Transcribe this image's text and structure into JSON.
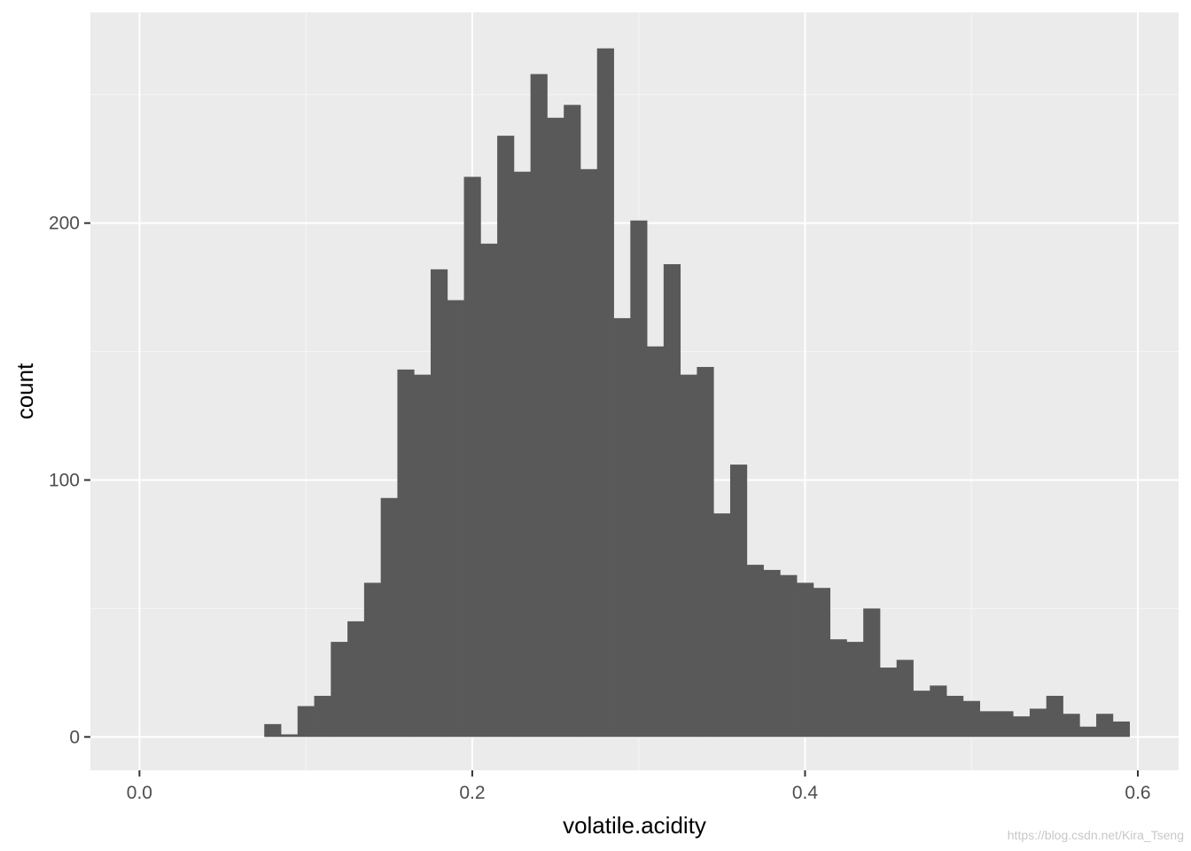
{
  "chart_data": {
    "type": "bar",
    "title": "",
    "xlabel": "volatile.acidity",
    "ylabel": "count",
    "xlim": [
      -0.0295,
      0.6245
    ],
    "ylim": [
      -13,
      282
    ],
    "x_ticks": [
      0.0,
      0.2,
      0.4,
      0.6
    ],
    "x_tick_labels": [
      "0.0",
      "0.2",
      "0.4",
      "0.6"
    ],
    "y_ticks": [
      0,
      100,
      200
    ],
    "y_tick_labels": [
      "0",
      "100",
      "200"
    ],
    "bin_width": 0.01,
    "bin_start": 0.075,
    "values": [
      5,
      1,
      12,
      16,
      37,
      45,
      60,
      93,
      143,
      141,
      182,
      170,
      218,
      192,
      234,
      220,
      258,
      241,
      246,
      221,
      268,
      163,
      201,
      152,
      184,
      141,
      144,
      87,
      106,
      67,
      65,
      63,
      60,
      58,
      38,
      37,
      50,
      27,
      30,
      18,
      20,
      16,
      14,
      10,
      10,
      8,
      11,
      16,
      9,
      4,
      9,
      6
    ],
    "grid": true,
    "legend": "none",
    "colors": {
      "panel_background": "#ebebeb",
      "grid_major": "#ffffff",
      "grid_minor": "#f5f5f5",
      "bar_fill": "#595959"
    }
  },
  "watermark": "https://blog.csdn.net/Kira_Tseng"
}
